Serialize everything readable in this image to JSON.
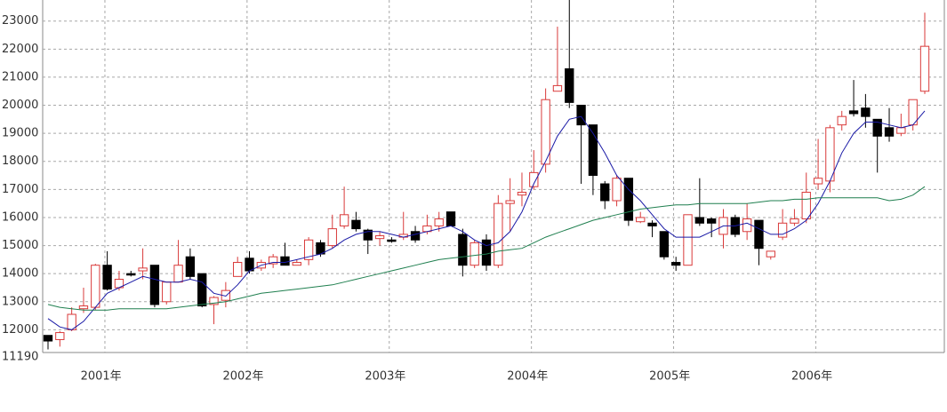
{
  "chart_data": {
    "type": "candlestick",
    "categories": [
      null,
      null,
      null,
      null,
      null,
      "2001年",
      null,
      null,
      null,
      null,
      null,
      null,
      null,
      null,
      null,
      null,
      null,
      "2002年",
      null,
      null,
      null,
      null,
      null,
      null,
      null,
      null,
      null,
      null,
      null,
      "2003年",
      null,
      null,
      null,
      null,
      null,
      null,
      null,
      null,
      null,
      null,
      null,
      "2004年",
      null,
      null,
      null,
      null,
      null,
      null,
      null,
      null,
      null,
      null,
      null,
      "2005年",
      null,
      null,
      null,
      null,
      null,
      null,
      null,
      null,
      null,
      null,
      null,
      "2006年",
      null,
      null,
      null,
      null,
      null,
      null,
      null,
      null,
      null
    ],
    "open": [
      11800,
      11650,
      12000,
      12750,
      12800,
      14300,
      13500,
      14000,
      14100,
      14300,
      13000,
      13700,
      14600,
      14000,
      12900,
      13050,
      13900,
      14550,
      14200,
      14350,
      14600,
      14300,
      14500,
      15100,
      15000,
      15700,
      15900,
      15550,
      15250,
      15200,
      15300,
      15500,
      15500,
      15700,
      16200,
      15400,
      14300,
      15200,
      14300,
      16500,
      16800,
      17100,
      17900,
      20500,
      21300,
      20000,
      19300,
      17200,
      16600,
      17400,
      15850,
      15800,
      15500,
      14400,
      14300,
      16000,
      15950,
      15400,
      16000,
      15500,
      15900,
      14600,
      15300,
      15800,
      15950,
      17200,
      17300,
      19300,
      19800,
      19900,
      19500,
      19200,
      19000,
      19300,
      20500
    ],
    "high": [
      11800,
      11950,
      12800,
      13500,
      14350,
      14800,
      14100,
      14100,
      14900,
      14300,
      13700,
      15200,
      14900,
      14000,
      13200,
      13700,
      14600,
      14800,
      14500,
      14700,
      15100,
      14500,
      15300,
      15200,
      16100,
      17100,
      16200,
      15600,
      15500,
      15300,
      16200,
      15700,
      16100,
      16200,
      16200,
      15600,
      15200,
      15400,
      16800,
      17400,
      17600,
      18400,
      20600,
      22800,
      23750,
      20000,
      19300,
      17300,
      17500,
      17400,
      16200,
      15900,
      15500,
      14600,
      16100,
      17400,
      16000,
      16300,
      16100,
      16500,
      15900,
      14800,
      16300,
      16300,
      17600,
      18800,
      19300,
      19800,
      20900,
      20400,
      19500,
      19900,
      19700,
      20200,
      23300
    ],
    "low": [
      11300,
      11400,
      11950,
      12600,
      12700,
      13400,
      13400,
      13900,
      13800,
      12800,
      12900,
      13700,
      13800,
      12800,
      12200,
      12800,
      13900,
      14000,
      14100,
      14200,
      14300,
      14300,
      14300,
      14600,
      14900,
      15600,
      15500,
      14700,
      15000,
      15100,
      15200,
      15100,
      15400,
      15500,
      15700,
      13900,
      14200,
      14100,
      14200,
      15500,
      16400,
      17000,
      17600,
      20500,
      19900,
      17200,
      16800,
      16300,
      16400,
      15700,
      15800,
      15300,
      14500,
      14100,
      14300,
      15700,
      15300,
      14900,
      15300,
      15200,
      14300,
      14500,
      15200,
      15700,
      15800,
      17000,
      16900,
      19100,
      19600,
      19200,
      17600,
      18700,
      18900,
      19100,
      20400
    ],
    "close": [
      11600,
      11900,
      12550,
      12850,
      14300,
      13450,
      13800,
      13950,
      14200,
      12900,
      13700,
      14300,
      13900,
      12850,
      13150,
      13400,
      14400,
      14100,
      14400,
      14600,
      14300,
      14400,
      15200,
      14700,
      15600,
      16100,
      15600,
      15200,
      15350,
      15150,
      15400,
      15200,
      15700,
      15950,
      15700,
      14300,
      15100,
      14300,
      16500,
      16600,
      16900,
      17600,
      20200,
      20700,
      20100,
      19300,
      17500,
      16600,
      17400,
      15900,
      16000,
      15700,
      14600,
      14300,
      16100,
      15800,
      15800,
      16000,
      15400,
      15950,
      14900,
      14800,
      15800,
      15950,
      16900,
      17400,
      19200,
      19600,
      19700,
      19600,
      18900,
      18900,
      19200,
      20200,
      22100
    ],
    "up_color": "#d93a3a",
    "down_color": "#000000",
    "lines": [
      {
        "color": "#1a1aa6",
        "values": [
          12400,
          12100,
          12000,
          12300,
          12800,
          13300,
          13500,
          13700,
          13900,
          13800,
          13700,
          13700,
          13800,
          13700,
          13300,
          13200,
          13600,
          14100,
          14300,
          14400,
          14400,
          14500,
          14600,
          14700,
          14900,
          15200,
          15400,
          15500,
          15500,
          15400,
          15300,
          15400,
          15500,
          15600,
          15700,
          15500,
          15200,
          15000,
          15100,
          15500,
          16200,
          17200,
          18000,
          18900,
          19500,
          19600,
          19000,
          18300,
          17500,
          17000,
          16600,
          16100,
          15600,
          15300,
          15300,
          15300,
          15500,
          15700,
          15700,
          15800,
          15600,
          15400,
          15400,
          15600,
          15900,
          16500,
          17300,
          18300,
          19000,
          19400,
          19400,
          19300,
          19200,
          19300,
          19800
        ]
      },
      {
        "color": "#1f7f4f",
        "values": [
          12900,
          12800,
          12750,
          12700,
          12700,
          12700,
          12750,
          12750,
          12750,
          12750,
          12750,
          12800,
          12850,
          12900,
          12950,
          13000,
          13100,
          13200,
          13300,
          13350,
          13400,
          13450,
          13500,
          13550,
          13600,
          13700,
          13800,
          13900,
          14000,
          14100,
          14200,
          14300,
          14400,
          14500,
          14550,
          14600,
          14650,
          14700,
          14800,
          14850,
          14900,
          15100,
          15300,
          15450,
          15600,
          15750,
          15900,
          16000,
          16100,
          16200,
          16300,
          16350,
          16400,
          16450,
          16450,
          16500,
          16500,
          16500,
          16500,
          16500,
          16550,
          16600,
          16600,
          16650,
          16650,
          16700,
          16700,
          16700,
          16700,
          16700,
          16700,
          16600,
          16650,
          16800,
          17100
        ]
      }
    ],
    "ylim": [
      11190,
      23750
    ],
    "yticks": [
      11190,
      12000,
      13000,
      14000,
      15000,
      16000,
      17000,
      18000,
      19000,
      20000,
      21000,
      22000,
      23000
    ],
    "grid": true
  }
}
